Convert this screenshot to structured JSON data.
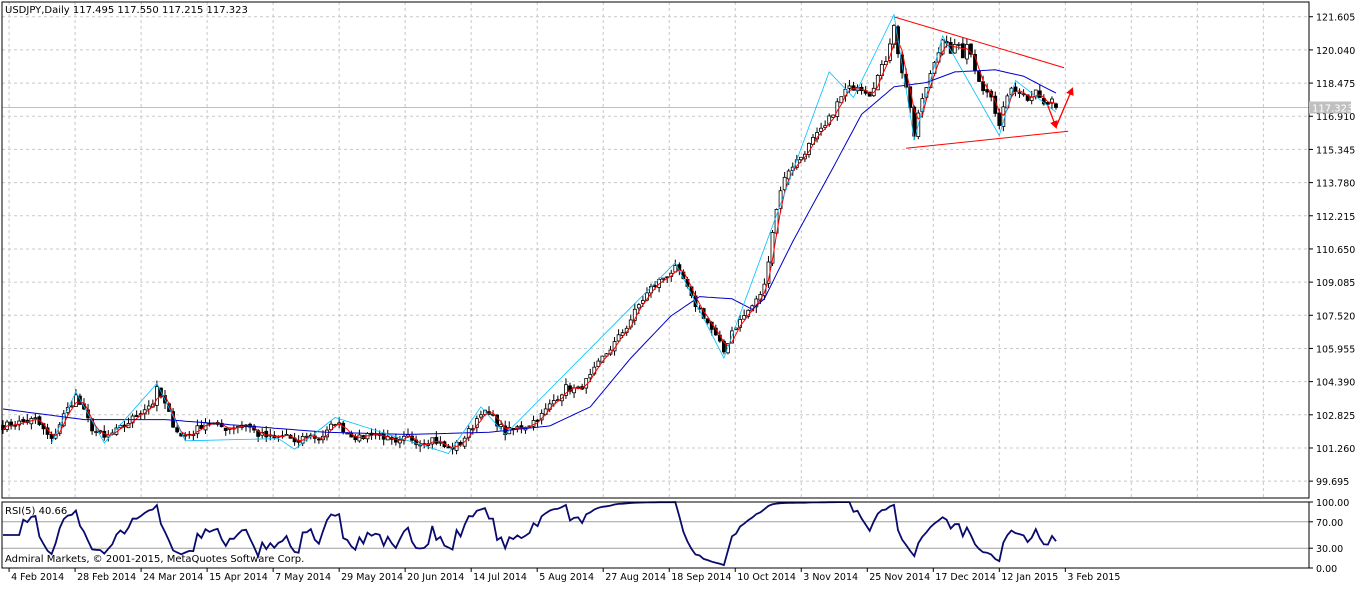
{
  "header": {
    "symbol_line": "USDJPY,Daily  117.495 117.550 117.215 117.323"
  },
  "colors": {
    "background": "#ffffff",
    "grid": "#c8c8c8",
    "bull_body": "#ffffff",
    "bear_body": "#000000",
    "candle_line": "#000000",
    "ma_fast": "#ff0000",
    "ma_slow": "#0000cc",
    "zigzag": "#00bfff",
    "trendline": "#ff0000",
    "arrow": "#ff0000",
    "rsi_line": "#0a0a6e",
    "price_tag_bg": "#c0c0c0",
    "price_tag_text": "#ffffff"
  },
  "chart_data": [
    {
      "type": "candlestick",
      "title": "USDJPY,Daily",
      "ohlc_current": {
        "open": 117.495,
        "high": 117.55,
        "low": 117.215,
        "close": 117.323
      },
      "y_ticks": [
        "121.605",
        "120.040",
        "118.475",
        "116.910",
        "115.345",
        "113.780",
        "112.215",
        "110.650",
        "109.085",
        "107.520",
        "105.955",
        "104.390",
        "102.825",
        "101.260",
        "99.695"
      ],
      "ylim": [
        98.9,
        122.3
      ],
      "current_price_label": "117.323",
      "x_ticks": [
        "4 Feb 2014",
        "28 Feb 2014",
        "24 Mar 2014",
        "15 Apr 2014",
        "7 May 2014",
        "29 May 2014",
        "20 Jun 2014",
        "14 Jul 2014",
        "5 Aug 2014",
        "27 Aug 2014",
        "18 Sep 2014",
        "10 Oct 2014",
        "3 Nov 2014",
        "25 Nov 2014",
        "17 Dec 2014",
        "12 Jan 2015",
        "3 Feb 2015"
      ],
      "close_keypoints": [
        [
          0,
          102.3
        ],
        [
          8,
          102.6
        ],
        [
          12,
          101.6
        ],
        [
          15,
          102.8
        ],
        [
          18,
          103.7
        ],
        [
          22,
          102.2
        ],
        [
          25,
          101.7
        ],
        [
          30,
          102.3
        ],
        [
          34,
          103.0
        ],
        [
          37,
          103.4
        ],
        [
          38,
          104.0
        ],
        [
          40,
          103.3
        ],
        [
          42,
          102.4
        ],
        [
          44,
          101.8
        ],
        [
          47,
          102.0
        ],
        [
          50,
          102.5
        ],
        [
          55,
          102.2
        ],
        [
          60,
          102.4
        ],
        [
          63,
          101.9
        ],
        [
          67,
          101.7
        ],
        [
          70,
          101.9
        ],
        [
          72,
          101.4
        ],
        [
          75,
          101.9
        ],
        [
          78,
          101.7
        ],
        [
          80,
          102.0
        ],
        [
          82,
          102.5
        ],
        [
          85,
          102.0
        ],
        [
          88,
          101.7
        ],
        [
          91,
          102.0
        ],
        [
          94,
          101.8
        ],
        [
          97,
          101.4
        ],
        [
          100,
          101.8
        ],
        [
          103,
          101.5
        ],
        [
          106,
          101.7
        ],
        [
          110,
          101.2
        ],
        [
          113,
          101.5
        ],
        [
          116,
          102.3
        ],
        [
          118,
          103.0
        ],
        [
          121,
          102.7
        ],
        [
          124,
          102.0
        ],
        [
          127,
          102.2
        ],
        [
          130,
          102.4
        ],
        [
          133,
          102.8
        ],
        [
          136,
          103.5
        ],
        [
          139,
          104.1
        ],
        [
          142,
          104.0
        ],
        [
          145,
          104.6
        ],
        [
          148,
          105.5
        ],
        [
          151,
          106.2
        ],
        [
          154,
          107.0
        ],
        [
          157,
          108.0
        ],
        [
          160,
          108.8
        ],
        [
          163,
          109.3
        ],
        [
          166,
          109.7
        ],
        [
          168,
          109.2
        ],
        [
          170,
          108.3
        ],
        [
          173,
          107.5
        ],
        [
          176,
          106.5
        ],
        [
          178,
          105.8
        ],
        [
          180,
          106.8
        ],
        [
          183,
          107.5
        ],
        [
          186,
          108.2
        ],
        [
          188,
          108.9
        ],
        [
          190,
          111.5
        ],
        [
          192,
          113.5
        ],
        [
          194,
          114.4
        ],
        [
          197,
          115.0
        ],
        [
          200,
          115.8
        ],
        [
          203,
          116.4
        ],
        [
          206,
          117.5
        ],
        [
          208,
          118.1
        ],
        [
          211,
          118.4
        ],
        [
          214,
          118.0
        ],
        [
          216,
          118.8
        ],
        [
          218,
          119.6
        ],
        [
          220,
          121.3
        ],
        [
          221,
          119.8
        ],
        [
          223,
          118.3
        ],
        [
          225,
          116.0
        ],
        [
          226,
          117.0
        ],
        [
          228,
          118.3
        ],
        [
          230,
          119.6
        ],
        [
          232,
          120.4
        ],
        [
          234,
          120.0
        ],
        [
          236,
          120.3
        ],
        [
          237,
          119.8
        ],
        [
          238,
          120.4
        ],
        [
          240,
          119.2
        ],
        [
          242,
          118.2
        ],
        [
          244,
          117.8
        ],
        [
          246,
          116.3
        ],
        [
          247,
          117.5
        ],
        [
          249,
          118.3
        ],
        [
          251,
          118.2
        ],
        [
          253,
          117.8
        ],
        [
          255,
          118.0
        ],
        [
          257,
          117.4
        ],
        [
          259,
          117.6
        ],
        [
          260,
          117.3
        ]
      ],
      "ma_slow_keypoints": [
        [
          0,
          103.1
        ],
        [
          20,
          102.6
        ],
        [
          40,
          102.6
        ],
        [
          60,
          102.3
        ],
        [
          80,
          102.0
        ],
        [
          100,
          101.9
        ],
        [
          120,
          102.0
        ],
        [
          135,
          102.3
        ],
        [
          145,
          103.2
        ],
        [
          155,
          105.5
        ],
        [
          165,
          107.5
        ],
        [
          172,
          108.4
        ],
        [
          180,
          108.3
        ],
        [
          185,
          107.8
        ],
        [
          188,
          108.3
        ],
        [
          195,
          111.0
        ],
        [
          205,
          114.5
        ],
        [
          212,
          117.0
        ],
        [
          220,
          118.3
        ],
        [
          228,
          118.5
        ],
        [
          235,
          119.0
        ],
        [
          245,
          119.1
        ],
        [
          252,
          118.8
        ],
        [
          260,
          118.0
        ]
      ],
      "annotations": {
        "upper_trendline": {
          "from": [
            220,
            121.6
          ],
          "to": [
            262,
            119.2
          ]
        },
        "lower_trendline": {
          "from": [
            223,
            115.4
          ],
          "to": [
            263,
            116.2
          ]
        },
        "arrow_down": {
          "from": [
            258,
            117.4
          ],
          "to": [
            260,
            116.4
          ]
        },
        "arrow_up": {
          "from": [
            260,
            116.4
          ],
          "to": [
            264,
            118.2
          ]
        }
      }
    },
    {
      "type": "line",
      "title": "RSI(5) 40.66",
      "indicator": "RSI(5)",
      "current_value": 40.66,
      "ylim": [
        0,
        100
      ],
      "y_ticks": [
        "100.00",
        "70.00",
        "30.00",
        "0.00"
      ],
      "levels": [
        70,
        30
      ]
    }
  ],
  "footer": {
    "copyright": "Admiral Markets, © 2001-2015, MetaQuotes Software Corp."
  }
}
